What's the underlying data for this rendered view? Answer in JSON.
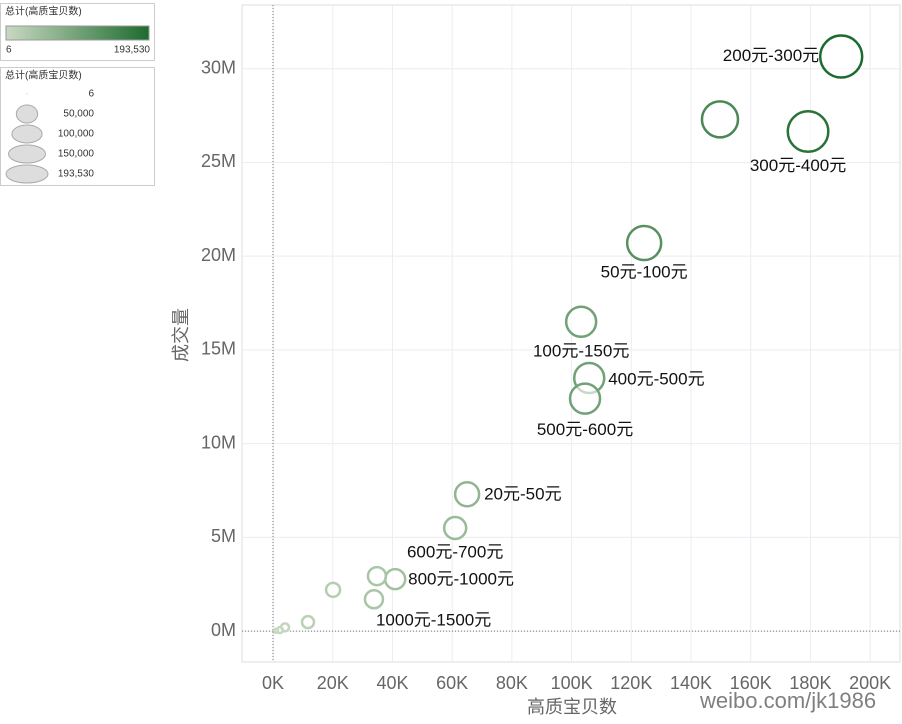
{
  "chart_data": {
    "type": "scatter",
    "x_label": "高质宝贝数",
    "y_label": "成交量",
    "xlim": [
      -10400,
      210000
    ],
    "xticks": [
      {
        "value": 0,
        "label": "0K"
      },
      {
        "value": 20000,
        "label": "20K"
      },
      {
        "value": 40000,
        "label": "40K"
      },
      {
        "value": 60000,
        "label": "60K"
      },
      {
        "value": 80000,
        "label": "80K"
      },
      {
        "value": 100000,
        "label": "100K"
      },
      {
        "value": 120000,
        "label": "120K"
      },
      {
        "value": 140000,
        "label": "140K"
      },
      {
        "value": 160000,
        "label": "160K"
      },
      {
        "value": 180000,
        "label": "180K"
      },
      {
        "value": 200000,
        "label": "200K"
      }
    ],
    "ylim": [
      -1650000,
      33400000
    ],
    "yticks": [
      {
        "value": 0,
        "label": "0M"
      },
      {
        "value": 5000000,
        "label": "5M"
      },
      {
        "value": 10000000,
        "label": "10M"
      },
      {
        "value": 15000000,
        "label": "15M"
      },
      {
        "value": 20000000,
        "label": "20M"
      },
      {
        "value": 25000000,
        "label": "25M"
      },
      {
        "value": 30000000,
        "label": "30M"
      }
    ],
    "grid": true,
    "color_low": "#c9d9c2",
    "color_high": "#1d6b2e",
    "labels": [
      "200元-300元",
      null,
      "300元-400元",
      "50元-100元",
      "100元-150元",
      "400元-500元",
      "500元-600元",
      "20元-50元",
      "600元-700元",
      "800元-1000元",
      null,
      "1000元-1500元",
      null,
      null,
      null,
      null,
      null
    ],
    "x": [
      190300,
      149700,
      179200,
      124300,
      103200,
      105900,
      104500,
      65000,
      61000,
      40900,
      34800,
      33800,
      20100,
      11700,
      4000,
      2300,
      1000
    ],
    "values": [
      30650000,
      27300000,
      26650000,
      20700000,
      16500000,
      13500000,
      12400000,
      7300000,
      5500000,
      2770000,
      2930000,
      1700000,
      2200000,
      480000,
      200000,
      50000,
      20000
    ],
    "sizes": [
      193530,
      142200,
      180000,
      126800,
      98700,
      98700,
      98700,
      63200,
      53100,
      43900,
      35500,
      35500,
      21500,
      15800,
      7000,
      3900,
      1760
    ],
    "color_legend": {
      "title": "总计(高质宝贝数)",
      "min": 6,
      "max": {
        "value": 193530,
        "label": "193,530"
      }
    },
    "size_legend": {
      "title": "总计(高质宝贝数)",
      "entries": [
        6,
        {
          "value": 50000,
          "label": "50,000"
        },
        {
          "value": 100000,
          "label": "100,000"
        },
        {
          "value": 150000,
          "label": "150,000"
        },
        {
          "value": 193530,
          "label": "193,530"
        }
      ]
    },
    "watermark": "weibo.com/jk1986"
  }
}
